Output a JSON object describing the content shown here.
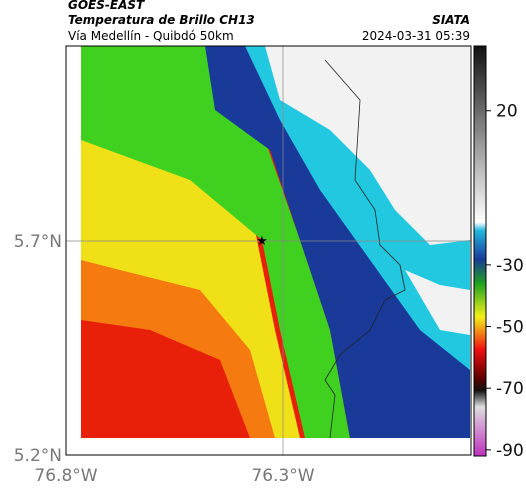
{
  "header": {
    "title": "GOES-EAST",
    "subtitle": "Temperatura de Brillo CH13",
    "source": "SIATA",
    "location": "Vía Medellín - Quibdó 50km",
    "datetime": "2024-03-31 05:39"
  },
  "axes": {
    "y_ticks": [
      "5.7°N",
      "5.2°N"
    ],
    "x_ticks": [
      "76.8°W",
      "76.3°W"
    ]
  },
  "colorbar": {
    "range": [
      -92,
      41
    ],
    "ticks": [
      20,
      -30,
      -50,
      -70,
      -90
    ]
  }
}
